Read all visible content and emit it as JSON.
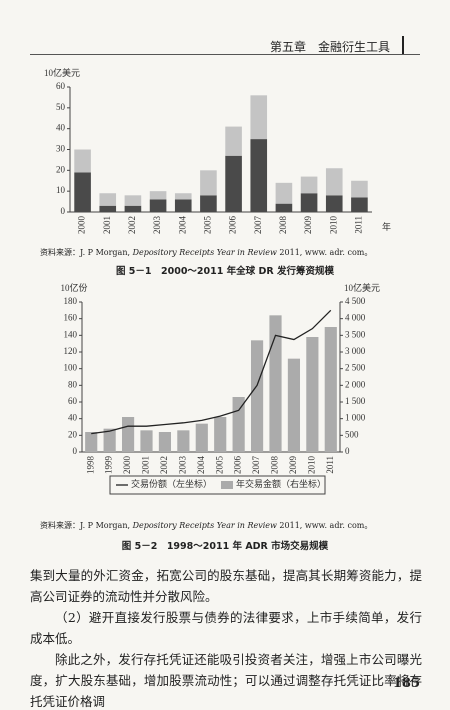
{
  "header": {
    "title": "第五章　金融衍生工具"
  },
  "chart_data": [
    {
      "type": "bar",
      "stacked": true,
      "ylabel": "10亿美元",
      "xlabel": "年",
      "categories": [
        "2000",
        "2001",
        "2002",
        "2003",
        "2004",
        "2005",
        "2006",
        "2007",
        "2008",
        "2009",
        "2010",
        "2011"
      ],
      "series": [
        {
          "color": "#4a4a4a",
          "values": [
            19,
            3,
            3,
            6,
            6,
            8,
            27,
            35,
            4,
            9,
            8,
            7
          ]
        },
        {
          "color": "#c4c4c4",
          "values": [
            11,
            6,
            5,
            4,
            3,
            12,
            14,
            21,
            10,
            8,
            13,
            8
          ]
        }
      ],
      "ylim": [
        0,
        60
      ],
      "yticks": [
        0,
        10,
        20,
        30,
        40,
        50,
        60
      ]
    },
    {
      "type": "combo",
      "ylabel": "10亿份",
      "y2label": "10亿美元",
      "categories": [
        "1998",
        "1999",
        "2000",
        "2001",
        "2002",
        "2003",
        "2004",
        "2005",
        "2006",
        "2007",
        "2008",
        "2009",
        "2010",
        "2011"
      ],
      "series": [
        {
          "name": "交易份额（左坐标）",
          "type": "line",
          "color": "#222222",
          "values": [
            22,
            25,
            31,
            31,
            33,
            35,
            38,
            43,
            50,
            80,
            140,
            135,
            148,
            170
          ]
        },
        {
          "name": "年交易金额（右坐标）",
          "type": "bar",
          "axis": "y2",
          "color": "#ababab",
          "values": [
            600,
            700,
            1050,
            650,
            600,
            650,
            850,
            1050,
            1650,
            3350,
            4100,
            2800,
            3450,
            3750
          ]
        }
      ],
      "ylim": [
        0,
        180
      ],
      "yticks": [
        0,
        20,
        40,
        60,
        80,
        100,
        120,
        140,
        160,
        180
      ],
      "y2lim": [
        0,
        4500
      ],
      "y2ticks": [
        0,
        500,
        {
          "value": 1000,
          "label": "1 000"
        },
        {
          "value": 1500,
          "label": "1 500"
        },
        {
          "value": 2000,
          "label": "2 000"
        },
        {
          "value": 2500,
          "label": "2 500"
        },
        {
          "value": 3000,
          "label": "3 000"
        },
        {
          "value": 3500,
          "label": "3 500"
        },
        {
          "value": 4000,
          "label": "4 000"
        },
        {
          "value": 4500,
          "label": "4 500"
        }
      ]
    }
  ],
  "figures": [
    {
      "source": {
        "prefix": "资料来源：J. P Morgan, ",
        "title": "Depository Receipts Year in Review",
        "suffix": " 2011, www. adr. com。"
      },
      "caption": "图 5－1　2000～2011 年全球 DR 发行筹资规模"
    },
    {
      "source": {
        "prefix": "资料来源：J. P Morgan, ",
        "title": "Depository Receipts Year in Review",
        "suffix": " 2011, www. adr. com。"
      },
      "caption": "图 5－2　1998～2011 年 ADR 市场交易规模"
    }
  ],
  "body": [
    "集到大量的外汇资金，拓宽公司的股东基础，提高其长期筹资能力，提高公司证券的流动性并分散风险。",
    "（2）避开直接发行股票与债券的法律要求，上市手续简单，发行成本低。",
    "除此之外，发行存托凭证还能吸引投资者关注，增强上市公司曝光度，扩大股东基础，增加股票流动性；可以通过调整存托凭证比率将存托凭证价格调"
  ],
  "page_number": "185"
}
